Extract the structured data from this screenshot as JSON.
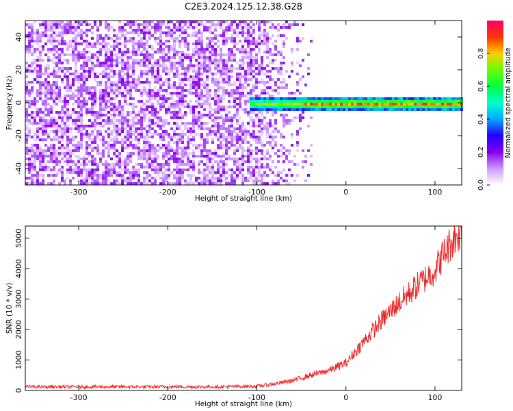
{
  "figure": {
    "title": "C2E3.2024.125.12.38.G28"
  },
  "chart_data": [
    {
      "type": "heatmap",
      "xlabel": "Height of straight line (km)",
      "ylabel": "Frequency (Hz)",
      "xlim": [
        -360,
        130
      ],
      "ylim": [
        -50,
        50
      ],
      "xticks": [
        -300,
        -200,
        -100,
        0,
        100
      ],
      "yticks": [
        -40,
        -20,
        0,
        20,
        40
      ],
      "colorbar": {
        "label": "Normalized spectral amplitude",
        "range": [
          0,
          1
        ],
        "ticks": [
          0.0,
          0.2,
          0.4,
          0.6,
          0.8
        ],
        "colormap": [
          "#ffffff",
          "#cc99ff",
          "#8800ee",
          "#2200ff",
          "#00aaff",
          "#00ffcc",
          "#00ff44",
          "#66ff00",
          "#ffcc00",
          "#ff3300",
          "#ff0066"
        ]
      },
      "features": {
        "noise_region_x": [
          -360,
          -40
        ],
        "signal_band_center_hz": 0,
        "signal_band_width_hz": 8,
        "signal_start_x": -110
      }
    },
    {
      "type": "line",
      "xlabel": "Height of straight line (km)",
      "ylabel": "SNR (10 * v/v)",
      "xlim": [
        -360,
        130
      ],
      "ylim": [
        0,
        5400
      ],
      "xticks": [
        -300,
        -200,
        -100,
        0,
        100
      ],
      "yticks": [
        0,
        1000,
        2000,
        3000,
        4000,
        5000
      ],
      "series": [
        {
          "color": "#ee2222",
          "x": [
            -360,
            -300,
            -250,
            -200,
            -150,
            -100,
            -80,
            -60,
            -40,
            -20,
            0,
            20,
            40,
            60,
            80,
            100,
            110,
            120,
            130
          ],
          "y": [
            120,
            120,
            120,
            120,
            120,
            140,
            220,
            320,
            500,
            650,
            900,
            1600,
            2300,
            2900,
            3450,
            3950,
            4500,
            4950,
            5250
          ]
        }
      ]
    }
  ]
}
